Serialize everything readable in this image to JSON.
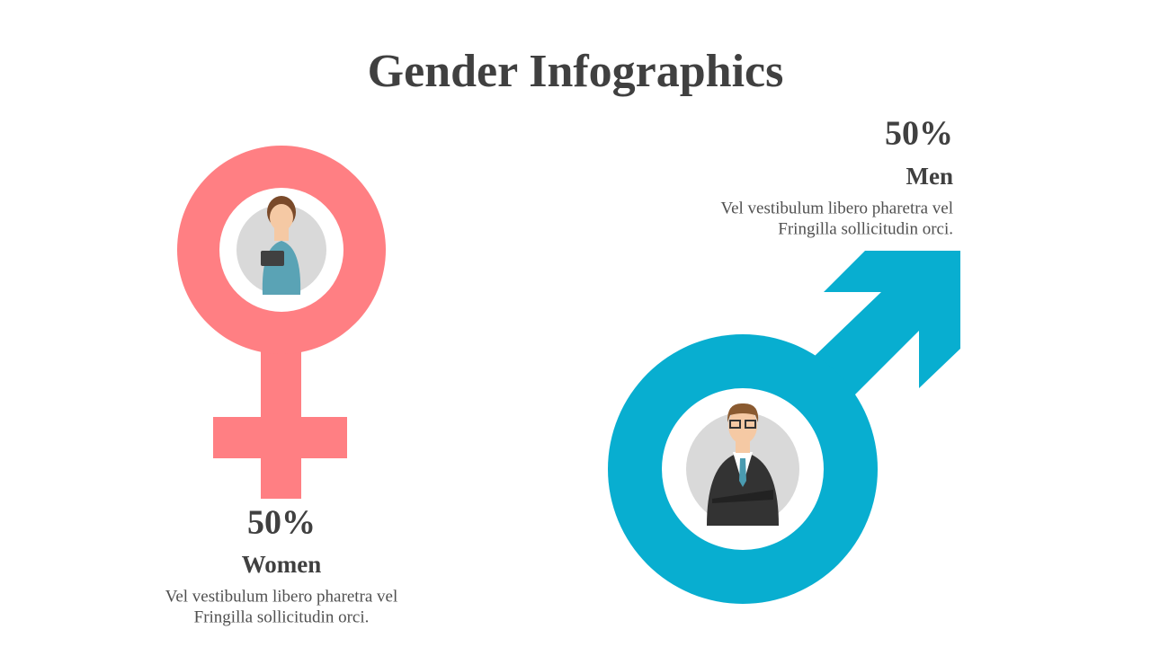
{
  "header": {
    "title": "Gender Infographics"
  },
  "women": {
    "percent": "50%",
    "label": "Women",
    "description": [
      "Vel vestibulum libero pharetra vel",
      "Fringilla sollicitudin orci."
    ]
  },
  "men": {
    "percent": "50%",
    "label": "Men",
    "description": [
      "Vel vestibulum libero pharetra vel",
      "Fringilla sollicitudin orci."
    ]
  }
}
